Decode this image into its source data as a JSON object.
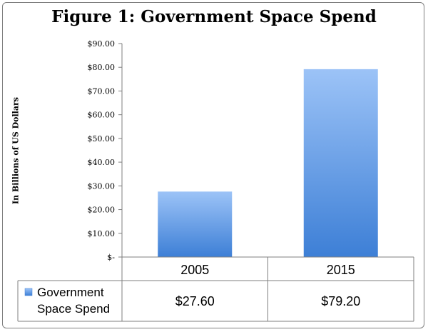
{
  "chart_data": {
    "type": "bar",
    "title": "Figure 1: Government Space Spend",
    "ylabel": "In Billions of US Dollars",
    "xlabel": "",
    "categories": [
      "2005",
      "2015"
    ],
    "series": [
      {
        "name": "Government Space Spend",
        "values": [
          27.6,
          79.2
        ]
      }
    ],
    "ylim": [
      0,
      90
    ],
    "y_ticks": [
      0,
      10,
      20,
      30,
      40,
      50,
      60,
      70,
      80,
      90
    ],
    "y_tick_labels": [
      "$-",
      "$10.00",
      "$20.00",
      "$30.00",
      "$40.00",
      "$50.00",
      "$60.00",
      "$70.00",
      "$80.00",
      "$90.00"
    ],
    "data_table": {
      "legend_lines": [
        "Government",
        "Space Spend"
      ],
      "cells": [
        "$27.60",
        "$79.20"
      ]
    },
    "grid": false,
    "legend_placement": "data-table",
    "colors": {
      "bar_top": "#9cc3f7",
      "bar_bottom": "#3d7fd6",
      "axis": "#7f7f7f"
    }
  }
}
